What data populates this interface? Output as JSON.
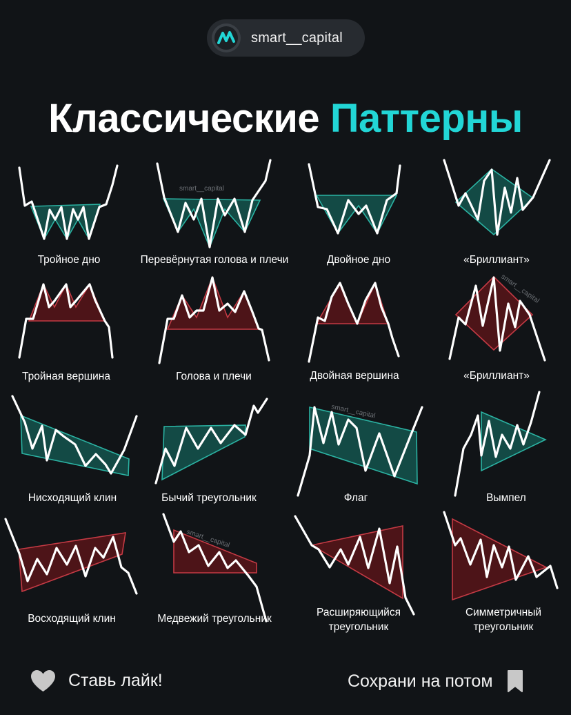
{
  "badge": {
    "handle": "smart__capital",
    "logo_icon": "smart-capital-logo"
  },
  "title": {
    "part1": "Классические",
    "part2": "Паттерны",
    "accent": "#22d6d6"
  },
  "colors": {
    "bullish_fill": "#134a45",
    "bullish_stroke": "#2bb3a3",
    "bearish_fill": "#4d1418",
    "bearish_stroke": "#c43a44",
    "price_line": "#ffffff"
  },
  "patterns": [
    {
      "label": "Тройное дно",
      "type": "bullish"
    },
    {
      "label": "Перевёрнутая голова и плечи",
      "type": "bullish"
    },
    {
      "label": "Двойное дно",
      "type": "bullish"
    },
    {
      "label": "«Бриллиант»",
      "type": "bullish"
    },
    {
      "label": "Тройная вершина",
      "type": "bearish"
    },
    {
      "label": "Голова и плечи",
      "type": "bearish"
    },
    {
      "label": "Двойная вершина",
      "type": "bearish"
    },
    {
      "label": "«Бриллиант»",
      "type": "bearish"
    },
    {
      "label": "Нисходящий клин",
      "type": "bullish"
    },
    {
      "label": "Бычий треугольник",
      "type": "bullish"
    },
    {
      "label": "Флаг",
      "type": "bullish"
    },
    {
      "label": "Вымпел",
      "type": "bullish"
    },
    {
      "label": "Восходящий клин",
      "type": "bearish"
    },
    {
      "label": "Медвежий треугольник",
      "type": "bearish"
    },
    {
      "label_line1": "Расширяющийся",
      "label_line2": "треугольник",
      "type": "bearish"
    },
    {
      "label_line1": "Симметричный",
      "label_line2": "треугольник",
      "type": "bearish"
    }
  ],
  "watermark": "smart__capital",
  "footer": {
    "like_text": "Ставь лайк!",
    "like_icon": "heart-icon",
    "save_text": "Сохрани на потом",
    "save_icon": "bookmark-icon"
  }
}
